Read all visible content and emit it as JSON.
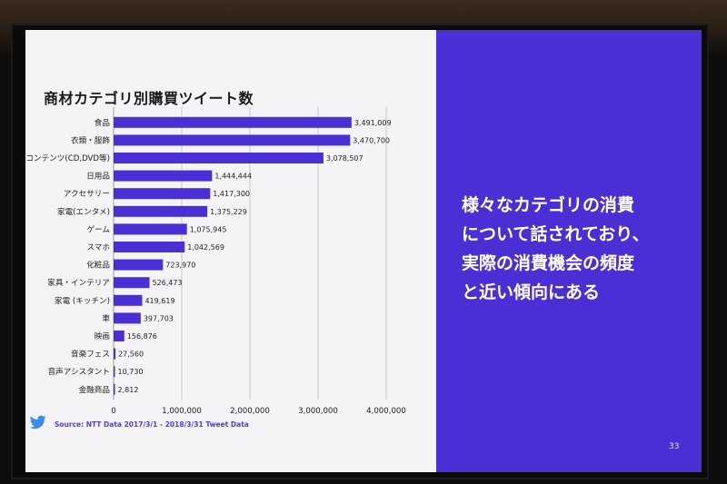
{
  "slide": {
    "title": "商材カテゴリ別購買ツイート数",
    "message_lines": [
      "様々なカテゴリの消費",
      "について話されており、",
      "実際の消費機会の頻度",
      "と近い傾向にある"
    ],
    "source": "Source: NTT Data 2017/3/1 - 2018/3/31 Tweet Data",
    "page_number": "33",
    "colors": {
      "bar": "#4a2fd4",
      "accent_panel": "#4a2fd4",
      "panel_bg": "#f4f4f7"
    }
  },
  "chart_data": {
    "type": "bar",
    "orientation": "horizontal",
    "title": "商材カテゴリ別購買ツイート数",
    "categories": [
      "食品",
      "衣類・服飾",
      "コンテンツ(CD,DVD等)",
      "日用品",
      "アクセサリー",
      "家電(エンタメ)",
      "ゲーム",
      "スマホ",
      "化粧品",
      "家具・インテリア",
      "家電 (キッチン)",
      "車",
      "映画",
      "音楽フェス",
      "音声アシスタント",
      "金融商品"
    ],
    "values": [
      3491009,
      3470700,
      3078507,
      1444444,
      1417300,
      1375229,
      1075945,
      1042569,
      723970,
      526473,
      419619,
      397703,
      156876,
      27560,
      10730,
      2812
    ],
    "value_labels": [
      "3,491,009",
      "3,470,700",
      "3,078,507",
      "1,444,444",
      "1,417,300",
      "1,375,229",
      "1,075,945",
      "1,042,569",
      "723,970",
      "526,473",
      "419,619",
      "397,703",
      "156,876",
      "27,560",
      "10,730",
      "2,812"
    ],
    "xlim": [
      0,
      4000000
    ],
    "xticks": [
      0,
      1000000,
      2000000,
      3000000,
      4000000
    ],
    "xtick_labels": [
      "0",
      "1,000,000",
      "2,000,000",
      "3,000,000",
      "4,000,000"
    ],
    "grid": true,
    "xlabel": "",
    "ylabel": ""
  }
}
